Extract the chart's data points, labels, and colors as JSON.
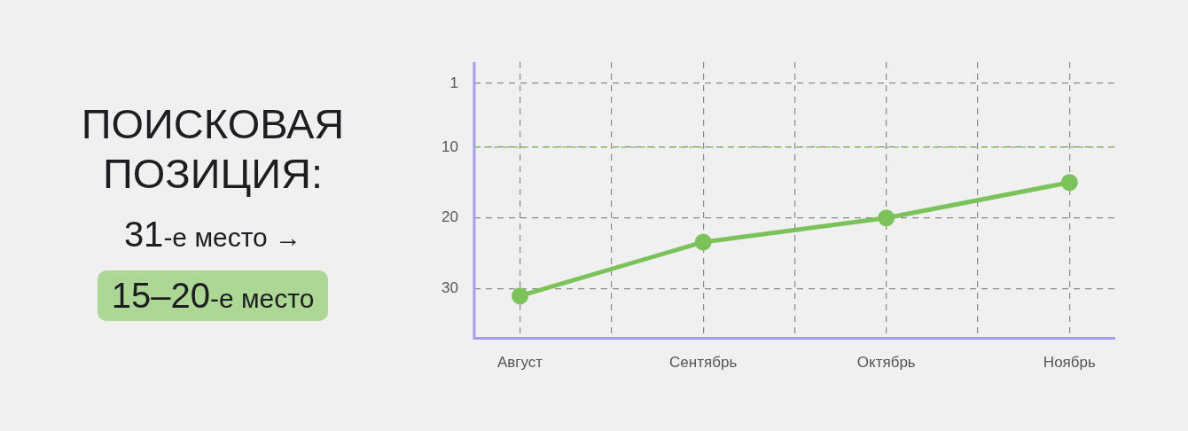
{
  "chart_data": {
    "type": "line",
    "title": "ПОИСКОВАЯ ПОЗИЦИЯ:",
    "annotations": [
      "31-е место →",
      "15–20-е место"
    ],
    "categories": [
      "Август",
      null,
      "Сентябрь",
      null,
      "Октябрь",
      null,
      "Ноябрь"
    ],
    "ylim": [
      37,
      -2
    ],
    "yticks": [
      1,
      10,
      20,
      30
    ],
    "grid": true,
    "marker": "circle",
    "ref_lines": [
      {
        "axis": "y",
        "value": 10,
        "color": "#8fcc6e",
        "line_style": "dashed"
      }
    ],
    "series": [
      {
        "color": "#7cc25a",
        "values": [
          31,
          null,
          23.4,
          null,
          20,
          null,
          15
        ]
      }
    ]
  }
}
